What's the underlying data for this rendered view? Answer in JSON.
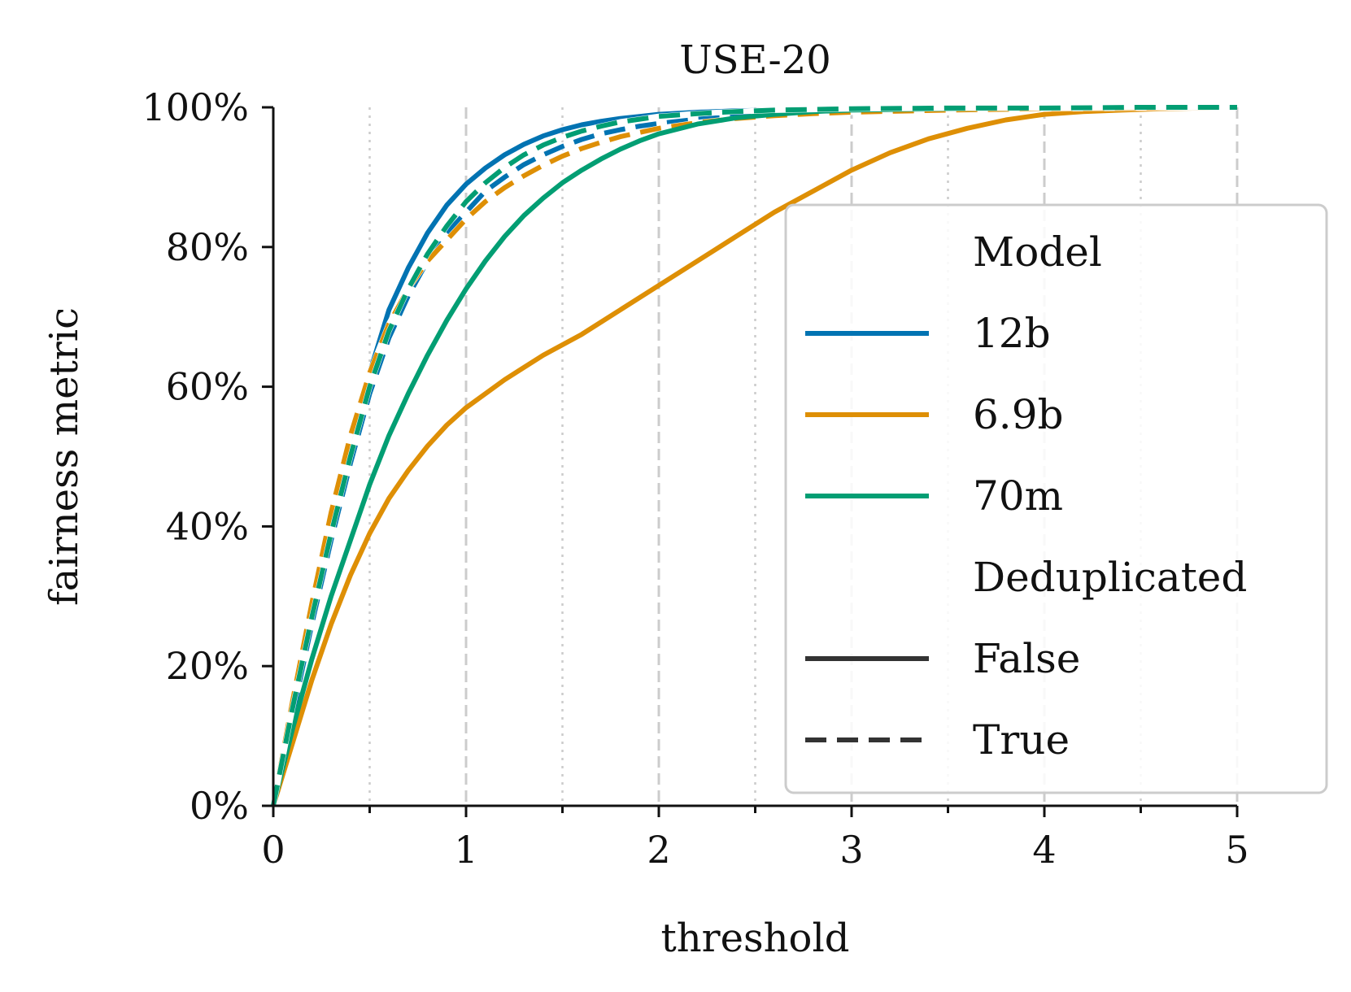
{
  "chart_data": {
    "type": "line",
    "title": "USE-20",
    "xlabel": "threshold",
    "ylabel": "fairness metric",
    "xlim": [
      0,
      5
    ],
    "ylim": [
      0,
      100
    ],
    "x_ticks": [
      "0",
      "1",
      "2",
      "3",
      "4",
      "5"
    ],
    "y_ticks": [
      "0%",
      "20%",
      "40%",
      "60%",
      "80%",
      "100%"
    ],
    "grid": "vertical: dashed at integers, dotted at half-integers",
    "legend_position": "right",
    "legend": {
      "hue_title": "Model",
      "style_title": "Deduplicated",
      "models": [
        "12b",
        "6.9b",
        "70m"
      ],
      "styles": [
        "False",
        "True"
      ]
    },
    "colors": {
      "12b": "#0173b2",
      "6.9b": "#de8f05",
      "70m": "#029e73",
      "style_key": "#333333"
    },
    "series": [
      {
        "model": "12b",
        "deduplicated": "False",
        "x": [
          0,
          0.1,
          0.2,
          0.3,
          0.4,
          0.5,
          0.6,
          0.7,
          0.8,
          0.9,
          1.0,
          1.1,
          1.2,
          1.3,
          1.4,
          1.5,
          1.6,
          1.7,
          1.8,
          1.9,
          2.0,
          2.2,
          2.4,
          2.6,
          2.8,
          3.0,
          3.5,
          4.0,
          4.5,
          5.0
        ],
        "y": [
          0,
          14,
          28,
          41,
          52,
          62,
          71,
          77,
          82,
          86,
          89,
          91.3,
          93.2,
          94.7,
          95.9,
          96.8,
          97.5,
          98.0,
          98.4,
          98.7,
          99.0,
          99.3,
          99.5,
          99.6,
          99.7,
          99.8,
          99.9,
          99.9,
          100,
          100
        ]
      },
      {
        "model": "12b",
        "deduplicated": "True",
        "x": [
          0,
          0.1,
          0.2,
          0.3,
          0.4,
          0.5,
          0.6,
          0.7,
          0.8,
          0.9,
          1.0,
          1.1,
          1.2,
          1.3,
          1.4,
          1.5,
          1.6,
          1.7,
          1.8,
          1.9,
          2.0,
          2.2,
          2.4,
          2.6,
          2.8,
          3.0,
          3.5,
          4.0,
          4.5,
          5.0
        ],
        "y": [
          0,
          13,
          26,
          38,
          49,
          59,
          67,
          73,
          78,
          82,
          85,
          88,
          90,
          91.8,
          93.2,
          94.4,
          95.4,
          96.2,
          96.8,
          97.3,
          97.7,
          98.3,
          98.7,
          99.0,
          99.2,
          99.4,
          99.7,
          99.8,
          99.9,
          100
        ]
      },
      {
        "model": "6.9b",
        "deduplicated": "False",
        "x": [
          0,
          0.1,
          0.2,
          0.3,
          0.4,
          0.5,
          0.6,
          0.7,
          0.8,
          0.9,
          1.0,
          1.2,
          1.4,
          1.6,
          1.8,
          2.0,
          2.2,
          2.4,
          2.6,
          2.8,
          3.0,
          3.2,
          3.4,
          3.6,
          3.8,
          4.0,
          4.2,
          4.4,
          4.6,
          4.8,
          5.0
        ],
        "y": [
          0,
          9,
          18,
          26,
          33,
          39,
          44,
          48,
          51.5,
          54.5,
          57,
          61,
          64.5,
          67.5,
          71,
          74.5,
          78,
          81.5,
          85,
          88,
          91,
          93.5,
          95.5,
          97,
          98.2,
          99.0,
          99.4,
          99.6,
          99.8,
          99.9,
          100
        ]
      },
      {
        "model": "6.9b",
        "deduplicated": "True",
        "x": [
          0,
          0.1,
          0.2,
          0.3,
          0.4,
          0.5,
          0.6,
          0.7,
          0.8,
          0.9,
          1.0,
          1.1,
          1.2,
          1.3,
          1.4,
          1.5,
          1.6,
          1.7,
          1.8,
          1.9,
          2.0,
          2.2,
          2.4,
          2.6,
          2.8,
          3.0,
          3.5,
          4.0,
          4.5,
          5.0
        ],
        "y": [
          0,
          15,
          29,
          42,
          53,
          62,
          69,
          74,
          78,
          81,
          84,
          86.5,
          88.5,
          90.2,
          91.7,
          93,
          94.1,
          95,
          95.8,
          96.4,
          97,
          97.8,
          98.4,
          98.8,
          99.1,
          99.3,
          99.6,
          99.8,
          99.9,
          100
        ]
      },
      {
        "model": "70m",
        "deduplicated": "False",
        "x": [
          0,
          0.1,
          0.2,
          0.3,
          0.4,
          0.5,
          0.6,
          0.7,
          0.8,
          0.9,
          1.0,
          1.1,
          1.2,
          1.3,
          1.4,
          1.5,
          1.6,
          1.7,
          1.8,
          1.9,
          2.0,
          2.2,
          2.4,
          2.6,
          2.8,
          3.0,
          3.5,
          4.0,
          4.5,
          5.0
        ],
        "y": [
          0,
          11,
          21,
          30,
          38,
          46,
          53,
          59,
          64.5,
          69.5,
          74,
          78,
          81.5,
          84.5,
          87,
          89.2,
          91,
          92.6,
          94,
          95.2,
          96.2,
          97.6,
          98.5,
          99.0,
          99.4,
          99.6,
          99.8,
          99.9,
          100,
          100
        ]
      },
      {
        "model": "70m",
        "deduplicated": "True",
        "x": [
          0,
          0.1,
          0.2,
          0.3,
          0.4,
          0.5,
          0.6,
          0.7,
          0.8,
          0.9,
          1.0,
          1.1,
          1.2,
          1.3,
          1.4,
          1.5,
          1.6,
          1.7,
          1.8,
          1.9,
          2.0,
          2.2,
          2.4,
          2.6,
          2.8,
          3.0,
          3.5,
          4.0,
          4.5,
          5.0
        ],
        "y": [
          0,
          14,
          27,
          39,
          50,
          60,
          68,
          74,
          79,
          83,
          86.5,
          89.2,
          91.4,
          93.2,
          94.6,
          95.7,
          96.6,
          97.3,
          97.9,
          98.3,
          98.7,
          99.1,
          99.4,
          99.6,
          99.7,
          99.8,
          99.9,
          99.9,
          100,
          100
        ]
      }
    ]
  }
}
